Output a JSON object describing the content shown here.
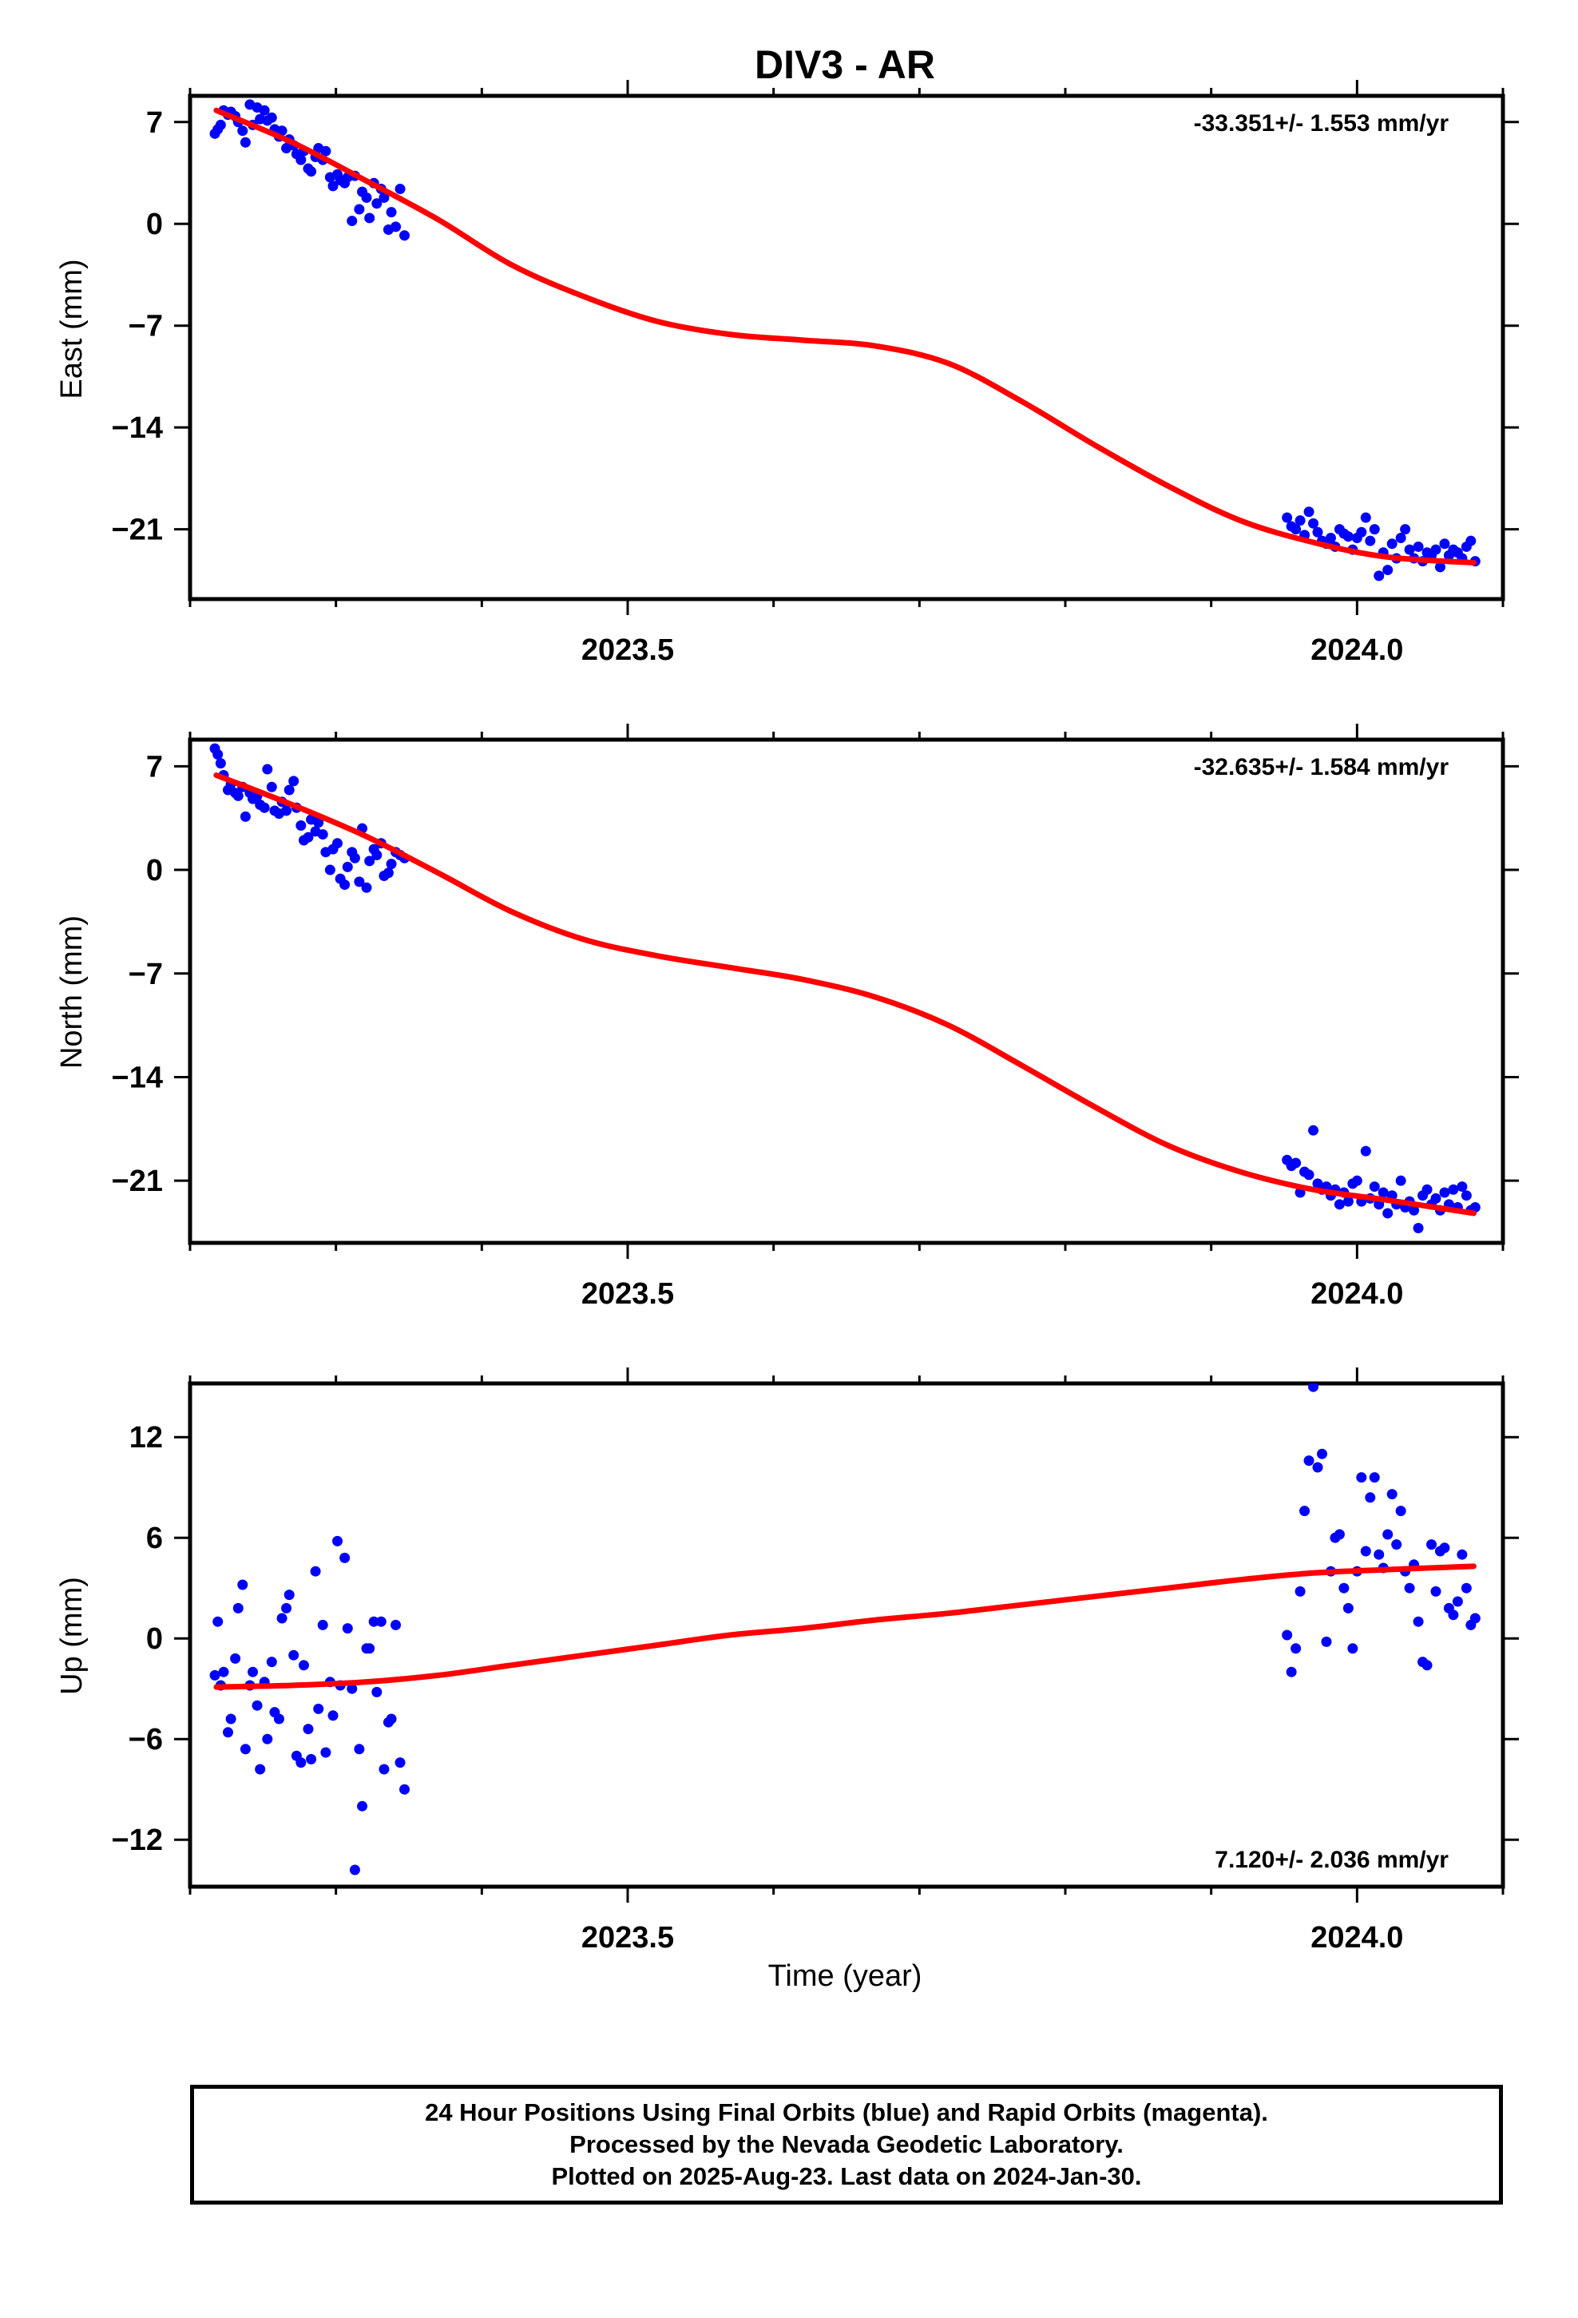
{
  "title": "DIV3 - AR",
  "colors": {
    "data": "#0000ff",
    "model": "#ff0000",
    "frame": "#000000"
  },
  "x_axis": {
    "label": "Time (year)",
    "ticks": [
      "2023.5",
      "2024.0"
    ]
  },
  "footer": {
    "line1": "24 Hour Positions Using Final Orbits (blue) and Rapid Orbits (magenta).",
    "line2": "Processed by the Nevada Geodetic Laboratory.",
    "line3": "Plotted on 2025-Aug-23. Last data on 2024-Jan-30."
  },
  "chart_data": [
    {
      "type": "scatter",
      "name": "east",
      "ylabel": "East (mm)",
      "rate": "-33.351+/- 1.553 mm/yr",
      "rate_position": "top-right",
      "xlim": [
        2023.2,
        2024.1
      ],
      "ylim": [
        -25.8,
        8.8
      ],
      "yticks": [
        7,
        0,
        -7,
        -14,
        -21
      ],
      "xticks": [
        2023.5,
        2024.0
      ],
      "model_x": [
        2023.218,
        2023.27,
        2023.32,
        2023.37,
        2023.42,
        2023.47,
        2023.52,
        2023.57,
        2023.62,
        2023.67,
        2023.72,
        2023.77,
        2023.82,
        2023.87,
        2023.92,
        2023.97,
        2024.02,
        2024.08
      ],
      "model_y": [
        7.8,
        5.6,
        3.0,
        0.3,
        -2.8,
        -5.0,
        -6.7,
        -7.6,
        -8.0,
        -8.4,
        -9.6,
        -12.2,
        -15.2,
        -18.0,
        -20.4,
        -21.9,
        -22.9,
        -23.3
      ],
      "x": [
        2023.217,
        2023.219,
        2023.221,
        2023.223,
        2023.226,
        2023.228,
        2023.231,
        2023.233,
        2023.236,
        2023.238,
        2023.241,
        2023.243,
        2023.246,
        2023.248,
        2023.251,
        2023.253,
        2023.256,
        2023.258,
        2023.261,
        2023.263,
        2023.266,
        2023.268,
        2023.271,
        2023.273,
        2023.276,
        2023.278,
        2023.281,
        2023.283,
        2023.286,
        2023.288,
        2023.291,
        2023.293,
        2023.296,
        2023.298,
        2023.301,
        2023.303,
        2023.306,
        2023.308,
        2023.311,
        2023.313,
        2023.316,
        2023.318,
        2023.321,
        2023.323,
        2023.326,
        2023.328,
        2023.331,
        2023.333,
        2023.336,
        2023.338,
        2023.341,
        2023.344,
        2023.347,
        2023.952,
        2023.955,
        2023.958,
        2023.961,
        2023.964,
        2023.967,
        2023.97,
        2023.973,
        2023.976,
        2023.979,
        2023.982,
        2023.985,
        2023.988,
        2023.991,
        2023.994,
        2023.997,
        2024.0,
        2024.003,
        2024.006,
        2024.009,
        2024.012,
        2024.015,
        2024.018,
        2024.021,
        2024.024,
        2024.027,
        2024.03,
        2024.033,
        2024.036,
        2024.039,
        2024.042,
        2024.045,
        2024.048,
        2024.051,
        2024.054,
        2024.057,
        2024.06,
        2024.063,
        2024.066,
        2024.069,
        2024.072,
        2024.075,
        2024.078,
        2024.081
      ],
      "y": [
        6.2,
        6.5,
        6.8,
        7.8,
        7.5,
        7.7,
        7.4,
        7.0,
        6.4,
        5.6,
        8.2,
        6.8,
        8.0,
        7.2,
        7.8,
        7.1,
        7.3,
        6.5,
        6.0,
        6.4,
        5.2,
        5.8,
        5.4,
        4.8,
        4.4,
        5.0,
        3.8,
        3.6,
        4.6,
        5.2,
        4.4,
        5.0,
        3.2,
        2.6,
        3.4,
        3.0,
        2.8,
        3.2,
        0.2,
        3.3,
        1.0,
        2.2,
        1.8,
        0.4,
        2.8,
        1.4,
        2.4,
        1.8,
        -0.4,
        0.8,
        -0.2,
        2.4,
        -0.8,
        -20.2,
        -20.8,
        -21.0,
        -20.4,
        -21.4,
        -19.8,
        -20.6,
        -21.2,
        -21.8,
        -22.0,
        -21.6,
        -22.2,
        -21.0,
        -21.3,
        -21.5,
        -22.4,
        -21.6,
        -21.2,
        -20.2,
        -21.8,
        -21.0,
        -24.2,
        -22.6,
        -23.8,
        -22.0,
        -23.0,
        -21.6,
        -21.0,
        -22.4,
        -23.0,
        -22.2,
        -23.2,
        -22.6,
        -22.8,
        -22.4,
        -23.6,
        -22.0,
        -22.8,
        -22.4,
        -22.6,
        -23.0,
        -22.2,
        -21.8,
        -23.2
      ]
    },
    {
      "type": "scatter",
      "name": "north",
      "ylabel": "North (mm)",
      "rate": "-32.635+/- 1.584 mm/yr",
      "rate_position": "top-right",
      "xlim": [
        2023.2,
        2024.1
      ],
      "ylim": [
        -25.2,
        8.8
      ],
      "yticks": [
        7,
        0,
        -7,
        -14,
        -21
      ],
      "xticks": [
        2023.5,
        2024.0
      ],
      "model_x": [
        2023.218,
        2023.27,
        2023.32,
        2023.37,
        2023.42,
        2023.47,
        2023.52,
        2023.57,
        2023.62,
        2023.67,
        2023.72,
        2023.77,
        2023.82,
        2023.87,
        2023.92,
        2023.97,
        2024.02,
        2024.08
      ],
      "model_y": [
        6.4,
        4.4,
        2.3,
        -0.2,
        -2.8,
        -4.7,
        -5.8,
        -6.6,
        -7.4,
        -8.6,
        -10.5,
        -13.2,
        -16.0,
        -18.6,
        -20.4,
        -21.6,
        -22.3,
        -23.2
      ],
      "x": [
        2023.217,
        2023.219,
        2023.221,
        2023.223,
        2023.226,
        2023.228,
        2023.231,
        2023.233,
        2023.236,
        2023.238,
        2023.241,
        2023.243,
        2023.246,
        2023.248,
        2023.251,
        2023.253,
        2023.256,
        2023.258,
        2023.261,
        2023.263,
        2023.266,
        2023.268,
        2023.271,
        2023.273,
        2023.276,
        2023.278,
        2023.281,
        2023.283,
        2023.286,
        2023.288,
        2023.291,
        2023.293,
        2023.296,
        2023.298,
        2023.301,
        2023.303,
        2023.306,
        2023.308,
        2023.311,
        2023.313,
        2023.316,
        2023.318,
        2023.321,
        2023.323,
        2023.326,
        2023.328,
        2023.331,
        2023.333,
        2023.336,
        2023.338,
        2023.341,
        2023.344,
        2023.347,
        2023.952,
        2023.955,
        2023.958,
        2023.961,
        2023.964,
        2023.967,
        2023.97,
        2023.973,
        2023.976,
        2023.979,
        2023.982,
        2023.985,
        2023.988,
        2023.991,
        2023.994,
        2023.997,
        2024.0,
        2024.003,
        2024.006,
        2024.009,
        2024.012,
        2024.015,
        2024.018,
        2024.021,
        2024.024,
        2024.027,
        2024.03,
        2024.033,
        2024.036,
        2024.039,
        2024.042,
        2024.045,
        2024.048,
        2024.051,
        2024.054,
        2024.057,
        2024.06,
        2024.063,
        2024.066,
        2024.069,
        2024.072,
        2024.075,
        2024.078,
        2024.081
      ],
      "y": [
        8.2,
        7.8,
        7.2,
        6.4,
        5.4,
        5.8,
        5.2,
        5.0,
        5.6,
        3.6,
        5.2,
        4.8,
        5.0,
        4.4,
        4.2,
        6.8,
        5.6,
        4.0,
        3.8,
        4.6,
        4.0,
        5.4,
        6.0,
        4.2,
        3.0,
        2.0,
        2.2,
        3.4,
        2.6,
        3.2,
        2.4,
        1.2,
        0.0,
        1.4,
        1.8,
        -0.6,
        -1.0,
        0.2,
        1.2,
        0.8,
        -0.8,
        2.8,
        -1.2,
        0.6,
        1.4,
        1.0,
        1.8,
        -0.4,
        -0.2,
        0.4,
        1.2,
        1.0,
        0.8,
        -19.6,
        -20.0,
        -19.8,
        -21.8,
        -20.4,
        -20.6,
        -17.6,
        -21.2,
        -21.6,
        -21.4,
        -22.0,
        -21.6,
        -22.6,
        -21.8,
        -22.4,
        -21.2,
        -21.0,
        -22.4,
        -19.0,
        -22.2,
        -21.4,
        -22.6,
        -21.8,
        -23.2,
        -22.0,
        -22.6,
        -21.0,
        -22.8,
        -22.4,
        -23.0,
        -24.2,
        -22.0,
        -21.6,
        -22.6,
        -22.2,
        -23.0,
        -21.8,
        -22.6,
        -21.6,
        -22.8,
        -21.4,
        -22.0,
        -23.0,
        -22.8
      ]
    },
    {
      "type": "scatter",
      "name": "up",
      "ylabel": "Up (mm)",
      "rate": "7.120+/- 2.036 mm/yr",
      "rate_position": "bottom-right",
      "xlim": [
        2023.2,
        2024.1
      ],
      "ylim": [
        -14.8,
        15.2
      ],
      "yticks": [
        12,
        6,
        0,
        -6,
        -12
      ],
      "xticks": [
        2023.5,
        2024.0
      ],
      "model_x": [
        2023.218,
        2023.27,
        2023.32,
        2023.37,
        2023.42,
        2023.47,
        2023.52,
        2023.57,
        2023.62,
        2023.67,
        2023.72,
        2023.77,
        2023.82,
        2023.87,
        2023.92,
        2023.97,
        2024.02,
        2024.08
      ],
      "model_y": [
        -2.9,
        -2.8,
        -2.6,
        -2.2,
        -1.6,
        -1.0,
        -0.4,
        0.2,
        0.6,
        1.1,
        1.5,
        2.0,
        2.5,
        3.0,
        3.5,
        3.9,
        4.1,
        4.3
      ],
      "x": [
        2023.217,
        2023.219,
        2023.221,
        2023.223,
        2023.226,
        2023.228,
        2023.231,
        2023.233,
        2023.236,
        2023.238,
        2023.241,
        2023.243,
        2023.246,
        2023.248,
        2023.251,
        2023.253,
        2023.256,
        2023.258,
        2023.261,
        2023.263,
        2023.266,
        2023.268,
        2023.271,
        2023.273,
        2023.276,
        2023.278,
        2023.281,
        2023.283,
        2023.286,
        2023.288,
        2023.291,
        2023.293,
        2023.296,
        2023.298,
        2023.301,
        2023.303,
        2023.306,
        2023.308,
        2023.311,
        2023.313,
        2023.316,
        2023.318,
        2023.321,
        2023.323,
        2023.326,
        2023.328,
        2023.331,
        2023.333,
        2023.336,
        2023.338,
        2023.341,
        2023.344,
        2023.347,
        2023.952,
        2023.955,
        2023.958,
        2023.961,
        2023.964,
        2023.967,
        2023.97,
        2023.973,
        2023.976,
        2023.979,
        2023.982,
        2023.985,
        2023.988,
        2023.991,
        2023.994,
        2023.997,
        2024.0,
        2024.003,
        2024.006,
        2024.009,
        2024.012,
        2024.015,
        2024.018,
        2024.021,
        2024.024,
        2024.027,
        2024.03,
        2024.033,
        2024.036,
        2024.039,
        2024.042,
        2024.045,
        2024.048,
        2024.051,
        2024.054,
        2024.057,
        2024.06,
        2024.063,
        2024.066,
        2024.069,
        2024.072,
        2024.075,
        2024.078,
        2024.081
      ],
      "y": [
        -2.2,
        1.0,
        -2.8,
        -2.0,
        -5.6,
        -4.8,
        -1.2,
        1.8,
        3.2,
        -6.6,
        -2.8,
        -2.0,
        -4.0,
        -7.8,
        -2.6,
        -6.0,
        -1.4,
        -4.4,
        -4.8,
        1.2,
        1.8,
        2.6,
        -1.0,
        -7.0,
        -7.4,
        -1.6,
        -5.4,
        -7.2,
        4.0,
        -4.2,
        0.8,
        -6.8,
        -2.6,
        -4.6,
        5.8,
        -2.8,
        4.8,
        0.6,
        -3.0,
        -13.8,
        -6.6,
        -10.0,
        -0.6,
        -0.6,
        1.0,
        -3.2,
        1.0,
        -7.8,
        -5.0,
        -4.8,
        0.8,
        -7.4,
        -9.0,
        0.2,
        -2.0,
        -0.6,
        2.8,
        7.6,
        10.6,
        15.0,
        10.2,
        11.0,
        -0.2,
        4.0,
        6.0,
        6.2,
        3.0,
        1.8,
        -0.6,
        4.0,
        9.6,
        5.2,
        8.4,
        9.6,
        5.0,
        4.2,
        6.2,
        8.6,
        5.6,
        7.6,
        4.0,
        3.0,
        4.4,
        1.0,
        -1.4,
        -1.6,
        5.6,
        2.8,
        5.2,
        5.4,
        1.8,
        1.4,
        2.2,
        5.0,
        3.0,
        0.8,
        1.2
      ]
    }
  ]
}
